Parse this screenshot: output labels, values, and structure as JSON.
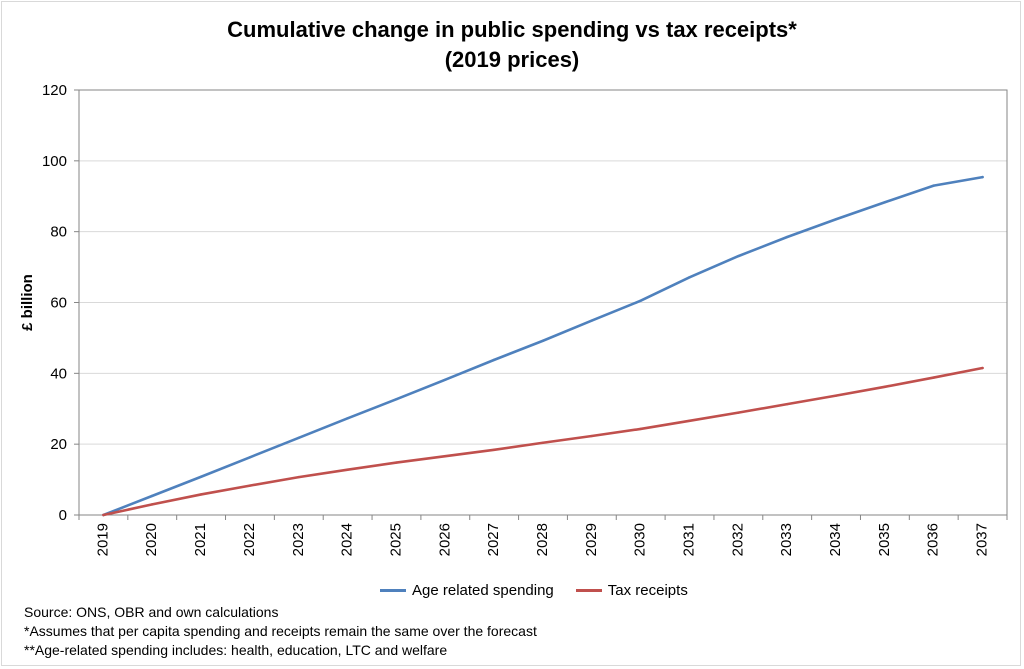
{
  "chart_data": {
    "type": "line",
    "title": "Cumulative change in public spending vs tax receipts*",
    "subtitle": "(2019 prices)",
    "xlabel": "",
    "ylabel": "£ billion",
    "ylim": [
      0,
      120
    ],
    "yticks": [
      "0",
      "20",
      "40",
      "60",
      "80",
      "100",
      "120"
    ],
    "categories": [
      "2019",
      "2020",
      "2021",
      "2022",
      "2023",
      "2024",
      "2025",
      "2026",
      "2027",
      "2028",
      "2029",
      "2030",
      "2031",
      "2032",
      "2033",
      "2034",
      "2035",
      "2036",
      "2037"
    ],
    "grid": true,
    "legend_position": "bottom",
    "series": [
      {
        "name": "Age related spending",
        "color": "#4f81bd",
        "values": [
          0,
          5.4,
          10.8,
          16.3,
          21.8,
          27.3,
          32.7,
          38.2,
          43.8,
          49.2,
          54.9,
          60.5,
          67.1,
          73.1,
          78.5,
          83.5,
          88.3,
          93,
          95.4
        ]
      },
      {
        "name": "Tax receipts",
        "color": "#c0504d",
        "values": [
          0,
          3,
          5.8,
          8.3,
          10.7,
          12.8,
          14.8,
          16.6,
          18.4,
          20.4,
          22.3,
          24.3,
          26.6,
          28.9,
          31.3,
          33.7,
          36.2,
          38.8,
          41.5
        ]
      }
    ]
  },
  "notes": [
    "Source: ONS, OBR and own calculations",
    "*Assumes that per capita spending and receipts remain the same over the forecast",
    "**Age-related spending includes: health, education, LTC and welfare"
  ]
}
